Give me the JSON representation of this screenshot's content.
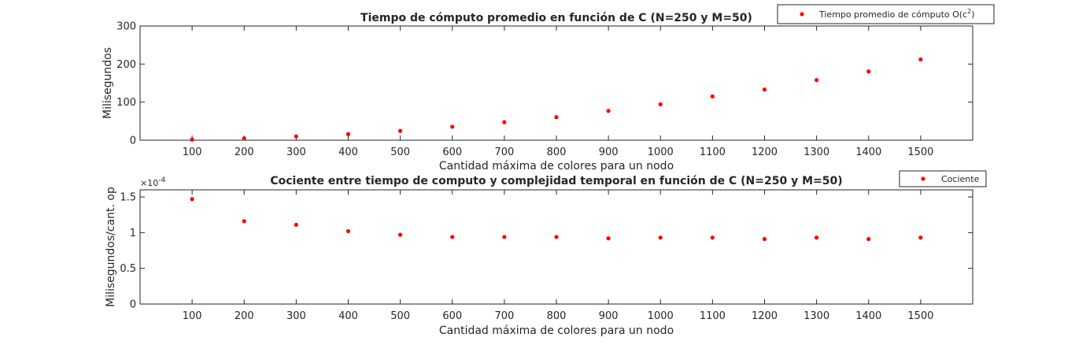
{
  "chart_data": [
    {
      "type": "scatter",
      "title": "Tiempo de cómputo promedio en función de C (N=250 y M=50)",
      "xlabel": "Cantidad máxima de colores para un nodo",
      "ylabel": "Milisegundos",
      "xlim": [
        0,
        1600
      ],
      "ylim": [
        0,
        300
      ],
      "xticks": [
        "100",
        "200",
        "300",
        "400",
        "500",
        "600",
        "700",
        "800",
        "900",
        "1000",
        "1100",
        "1200",
        "1300",
        "1400",
        "1500"
      ],
      "yticks": [
        "0",
        "100",
        "200",
        "300"
      ],
      "legend_position": "top-right (outside plot area)",
      "grid": false,
      "series": [
        {
          "name": "Tiempo promedio de cómputo O(c",
          "name_superscript": "2",
          "name_suffix": ")",
          "color": "#ff0000",
          "marker": "dot",
          "x": [
            100,
            200,
            300,
            400,
            500,
            600,
            700,
            800,
            900,
            1000,
            1100,
            1200,
            1300,
            1400,
            1500
          ],
          "y": [
            1.5,
            4.7,
            10,
            16,
            24.3,
            35.3,
            47.3,
            60.5,
            76.9,
            94.1,
            114.9,
            133.1,
            157.9,
            180.5,
            212.1
          ]
        }
      ]
    },
    {
      "type": "scatter",
      "title": "Cociente entre tiempo de computo y complejidad temporal en función de C (N=250 y M=50)",
      "xlabel": "Cantidad máxima de colores para un nodo",
      "ylabel": "Milisegundos/cant. op",
      "xlim": [
        0,
        1600
      ],
      "ylim": [
        0,
        1.6
      ],
      "y_scale_factor": "×10",
      "y_scale_exponent": "-4",
      "xticks": [
        "100",
        "200",
        "300",
        "400",
        "500",
        "600",
        "700",
        "800",
        "900",
        "1000",
        "1100",
        "1200",
        "1300",
        "1400",
        "1500"
      ],
      "yticks": [
        "0",
        "0.5",
        "1",
        "1.5"
      ],
      "legend_position": "top-right (outside plot area)",
      "grid": false,
      "series": [
        {
          "name": "Cociente",
          "color": "#ff0000",
          "marker": "dot",
          "x": [
            100,
            200,
            300,
            400,
            500,
            600,
            700,
            800,
            900,
            1000,
            1100,
            1200,
            1300,
            1400,
            1500
          ],
          "y": [
            1.47,
            1.16,
            1.11,
            1.02,
            0.97,
            0.94,
            0.94,
            0.94,
            0.92,
            0.93,
            0.93,
            0.91,
            0.93,
            0.91,
            0.93
          ]
        }
      ]
    }
  ]
}
